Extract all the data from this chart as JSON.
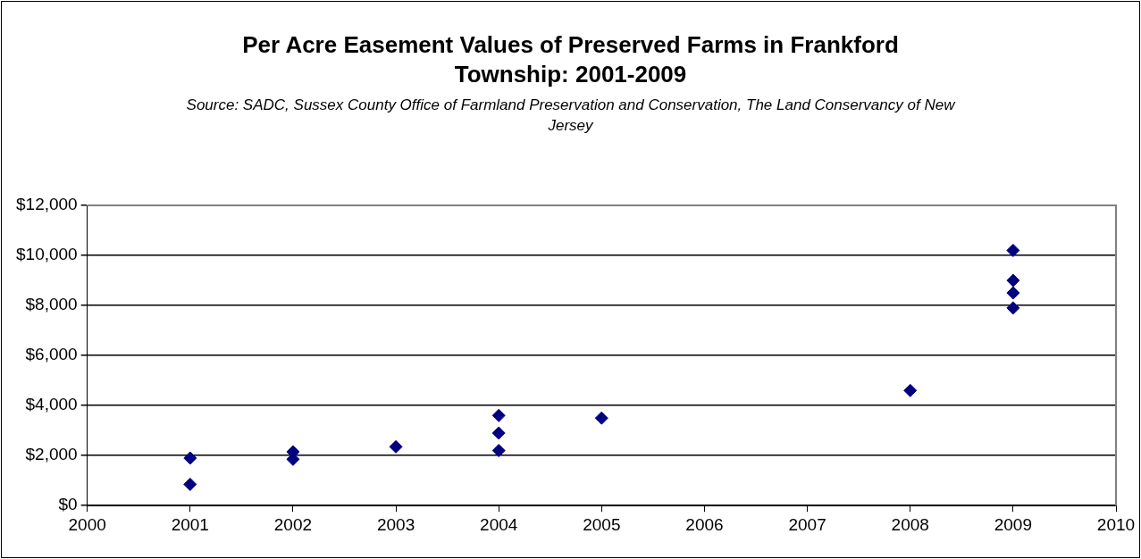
{
  "chart_data": {
    "type": "scatter",
    "title": "Per Acre Easement Values of Preserved Farms in Frankford Township: 2001-2009",
    "annotations": [
      "Source: SADC, Sussex County Office of Farmland Preservation and Conservation, The Land Conservancy of New Jersey"
    ],
    "series": [
      {
        "color": "#000080",
        "x": [
          2001,
          2001,
          2002,
          2002,
          2003,
          2004,
          2004,
          2004,
          2005,
          2008,
          2009,
          2009,
          2009,
          2009
        ],
        "values": [
          1900,
          850,
          2150,
          1850,
          2350,
          3600,
          2900,
          2200,
          3500,
          4600,
          10200,
          9000,
          8500,
          7900
        ]
      }
    ],
    "xlim": [
      2000,
      2010
    ],
    "xticks": [
      2000,
      2001,
      2002,
      2003,
      2004,
      2005,
      2006,
      2007,
      2008,
      2009,
      2010
    ],
    "ylim": [
      0,
      12000
    ],
    "yticks": [
      {
        "value": 0,
        "label": "$0"
      },
      {
        "value": 2000,
        "label": "$2,000"
      },
      {
        "value": 4000,
        "label": "$4,000"
      },
      {
        "value": 6000,
        "label": "$6,000"
      },
      {
        "value": 8000,
        "label": "$8,000"
      },
      {
        "value": 10000,
        "label": "$10,000"
      },
      {
        "value": 12000,
        "label": "$12,000"
      }
    ],
    "grid": "y",
    "marker": "diamond",
    "legend": false
  }
}
